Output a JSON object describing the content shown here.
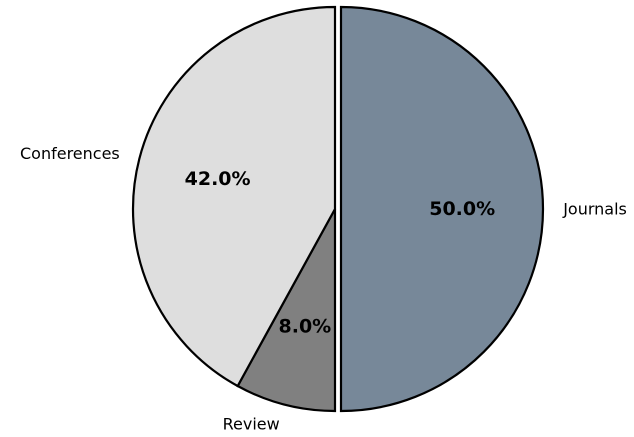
{
  "chart_data": {
    "type": "pie",
    "slices": [
      {
        "label": "Journals",
        "value": 50.0,
        "pct_label": "50.0%",
        "color": "#778899",
        "explode": true
      },
      {
        "label": "Review",
        "value": 8.0,
        "pct_label": "8.0%",
        "color": "#808080",
        "explode": false
      },
      {
        "label": "Conferences",
        "value": 42.0,
        "pct_label": "42.0%",
        "color": "#dedede",
        "explode": false
      }
    ],
    "start_angle_deg": 90,
    "direction": "clockwise",
    "legend": "none"
  }
}
